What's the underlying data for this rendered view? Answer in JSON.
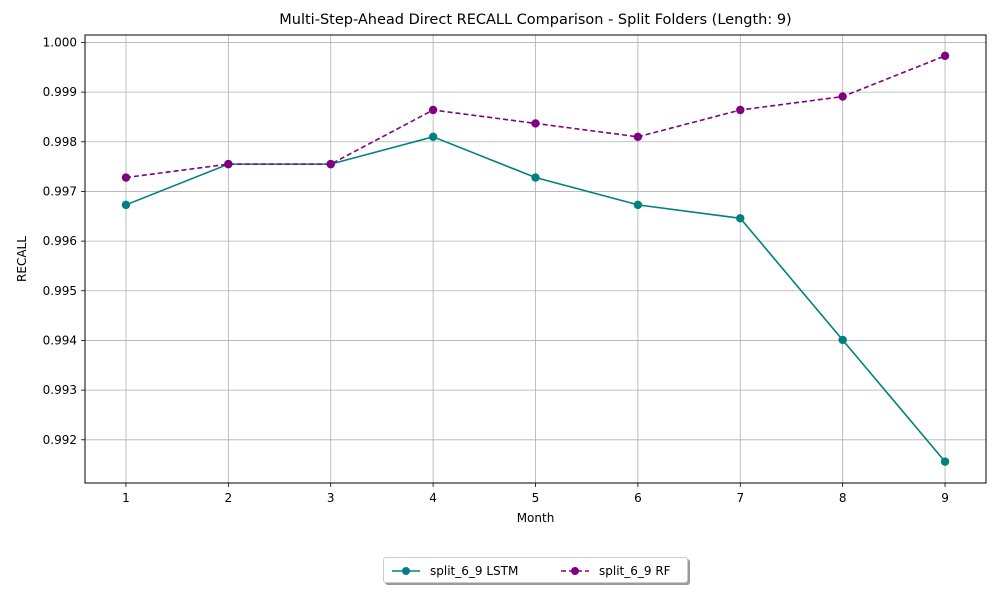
{
  "chart_data": {
    "type": "line",
    "title": "Multi-Step-Ahead Direct RECALL Comparison - Split Folders (Length: 9)",
    "xlabel": "Month",
    "ylabel": "RECALL",
    "x": [
      1,
      2,
      3,
      4,
      5,
      6,
      7,
      8,
      9
    ],
    "xlim": [
      0.6,
      9.4
    ],
    "ylim": [
      0.99113,
      1.00015
    ],
    "yticks": [
      0.992,
      0.993,
      0.994,
      0.995,
      0.996,
      0.997,
      0.998,
      0.999,
      1.0
    ],
    "ytick_labels": [
      "0.992",
      "0.993",
      "0.994",
      "0.995",
      "0.996",
      "0.997",
      "0.998",
      "0.999",
      "1.000"
    ],
    "xtick_labels": [
      "1",
      "2",
      "3",
      "4",
      "5",
      "6",
      "7",
      "8",
      "9"
    ],
    "grid": true,
    "legend_position": "bottom-center",
    "series": [
      {
        "name": "split_6_9 LSTM",
        "color": "#008080",
        "linestyle": "solid",
        "marker": "circle",
        "values": [
          0.99673,
          0.99755,
          0.99755,
          0.9981,
          0.99728,
          0.99673,
          0.99646,
          0.99401,
          0.99156
        ]
      },
      {
        "name": "split_6_9 RF",
        "color": "#800080",
        "linestyle": "dashed",
        "marker": "circle",
        "values": [
          0.99728,
          0.99755,
          0.99755,
          0.99864,
          0.99837,
          0.9981,
          0.99864,
          0.99891,
          0.99973
        ]
      }
    ]
  }
}
